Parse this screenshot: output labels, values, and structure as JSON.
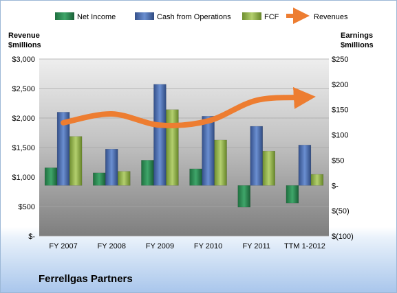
{
  "chart_data": {
    "type": "bar",
    "title": "",
    "categories": [
      "FY 2007",
      "FY 2008",
      "FY 2009",
      "FY 2010",
      "FY 2011",
      "TTM 1-2012"
    ],
    "series": [
      {
        "name": "Net Income",
        "axis": "right",
        "color": "#2e8b57",
        "values": [
          35,
          25,
          50,
          33,
          -43,
          -35
        ]
      },
      {
        "name": "Cash from Operations",
        "axis": "right",
        "color": "#4a6fb3",
        "values": [
          145,
          72,
          200,
          137,
          117,
          80
        ]
      },
      {
        "name": "FCF",
        "axis": "right",
        "color": "#8fb04a",
        "values": [
          97,
          28,
          150,
          90,
          68,
          22
        ]
      },
      {
        "name": "Revenues",
        "axis": "left",
        "type": "line",
        "color": "#ed7d31",
        "values": [
          1920,
          2070,
          1880,
          1950,
          2300,
          2350
        ]
      }
    ],
    "left_axis": {
      "title_line1": "Revenue",
      "title_line2": "$millions",
      "min": 0,
      "max": 3000,
      "ticks": [
        0,
        500,
        1000,
        1500,
        2000,
        2500,
        3000
      ],
      "tick_labels": [
        "$-",
        "$500",
        "$1,000",
        "$1,500",
        "$2,000",
        "$2,500",
        "$3,000"
      ]
    },
    "right_axis": {
      "title_line1": "Earnings",
      "title_line2": "$millions",
      "min": -100,
      "max": 250,
      "ticks": [
        -100,
        -50,
        0,
        50,
        100,
        150,
        200,
        250
      ],
      "tick_labels": [
        "$(100)",
        "$(50)",
        "$-",
        "$50",
        "$100",
        "$150",
        "$200",
        "$250"
      ]
    },
    "legend_position": "top",
    "grid": true
  },
  "company_name": "Ferrellgas Partners"
}
